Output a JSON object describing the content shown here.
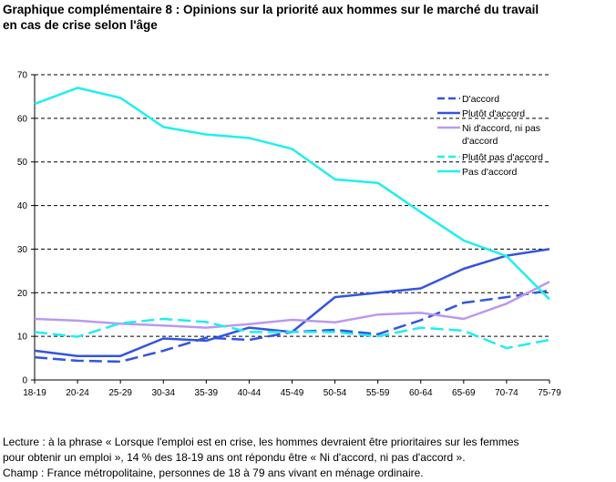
{
  "header": {
    "title_line1": "Graphique complémentaire 8 : Opinions sur la priorité aux hommes sur le marché du travail",
    "title_line2": "en cas de crise selon l'âge"
  },
  "footer": {
    "lecture_line1": "Lecture : à la phrase « Lorsque l'emploi est en crise, les hommes devraient être prioritaires sur les femmes",
    "lecture_line2": "pour obtenir un emploi », 14 % des 18-19 ans ont répondu être « Ni d'accord, ni pas d'accord ».",
    "champ": "Champ : France métropolitaine, personnes de 18 à 79 ans vivant en ménage ordinaire."
  },
  "chart_data": {
    "type": "line",
    "categories": [
      "18-19",
      "20-24",
      "25-29",
      "30-34",
      "35-39",
      "40-44",
      "45-49",
      "50-54",
      "55-59",
      "60-64",
      "65-69",
      "70-74",
      "75-79"
    ],
    "ylim": [
      0,
      70
    ],
    "yticks": [
      0,
      10,
      20,
      30,
      40,
      50,
      60,
      70
    ],
    "grid": "horizontal-dashed",
    "legend_position": "top-right",
    "series": [
      {
        "name": "D'accord",
        "color": "#3355dd",
        "dashed": true,
        "values": [
          5.2,
          4.4,
          4.2,
          6.7,
          9.7,
          9.2,
          11.0,
          11.5,
          10.5,
          13.7,
          17.7,
          19.0,
          20.5
        ]
      },
      {
        "name": "Plutôt d'accord",
        "color": "#3355dd",
        "dashed": false,
        "values": [
          6.7,
          5.5,
          5.5,
          9.5,
          9.0,
          12.0,
          11.0,
          19.0,
          20.0,
          21.0,
          25.5,
          28.5,
          30.0
        ]
      },
      {
        "name": "Ni d'accord, ni pas d'accord",
        "color": "#bb99ee",
        "dashed": false,
        "values": [
          14.0,
          13.6,
          12.9,
          12.5,
          12.0,
          12.8,
          13.8,
          13.2,
          15.0,
          15.4,
          14.0,
          17.5,
          22.5
        ]
      },
      {
        "name": "Plutôt pas d'accord",
        "color": "#22eeee",
        "dashed": true,
        "values": [
          11.0,
          9.9,
          13.0,
          14.0,
          13.3,
          11.0,
          11.0,
          11.0,
          10.0,
          12.0,
          11.3,
          7.3,
          9.2
        ]
      },
      {
        "name": "Pas d'accord",
        "color": "#22eeee",
        "dashed": false,
        "values": [
          63.3,
          67.0,
          64.7,
          58.0,
          56.3,
          55.5,
          53.0,
          46.0,
          45.2,
          38.5,
          32.0,
          28.4,
          18.5
        ]
      }
    ],
    "legend_lines": [
      [
        "D'accord"
      ],
      [
        "Plutôt d'accord"
      ],
      [
        "Ni d'accord, ni pas",
        "d'accord"
      ],
      [
        "Plutôt pas d'accord"
      ],
      [
        "Pas d'accord"
      ]
    ]
  }
}
